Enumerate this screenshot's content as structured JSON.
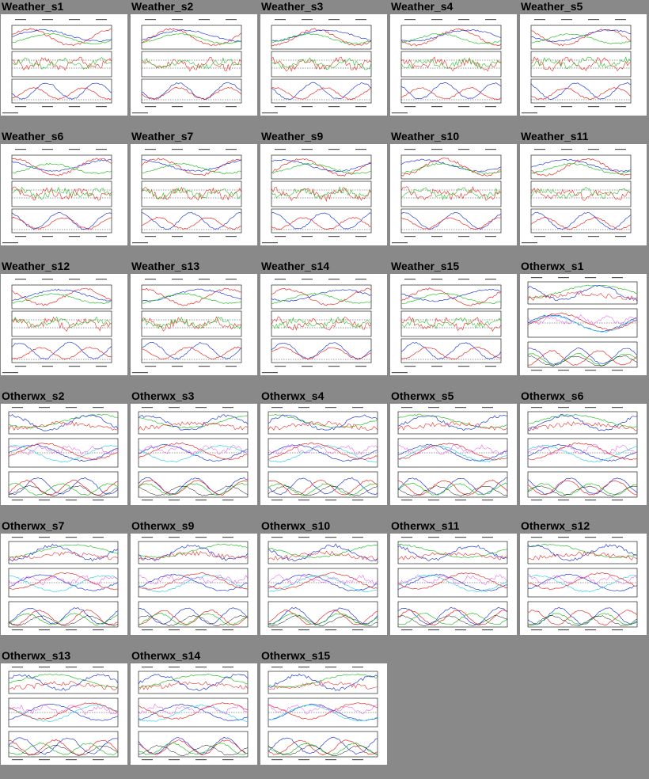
{
  "page": {
    "background": "#898989"
  },
  "thumbnails": [
    {
      "title": "Weather_s1",
      "kind": "weather"
    },
    {
      "title": "Weather_s2",
      "kind": "weather"
    },
    {
      "title": "Weather_s3",
      "kind": "weather"
    },
    {
      "title": "Weather_s4",
      "kind": "weather"
    },
    {
      "title": "Weather_s5",
      "kind": "weather"
    },
    {
      "title": "Weather_s6",
      "kind": "weather"
    },
    {
      "title": "Weather_s7",
      "kind": "weather"
    },
    {
      "title": "Weather_s9",
      "kind": "weather"
    },
    {
      "title": "Weather_s10",
      "kind": "weather"
    },
    {
      "title": "Weather_s11",
      "kind": "weather"
    },
    {
      "title": "Weather_s12",
      "kind": "weather"
    },
    {
      "title": "Weather_s13",
      "kind": "weather"
    },
    {
      "title": "Weather_s14",
      "kind": "weather"
    },
    {
      "title": "Weather_s15",
      "kind": "weather"
    },
    {
      "title": "Otherwx_s1",
      "kind": "otherwx"
    },
    {
      "title": "Otherwx_s2",
      "kind": "otherwx"
    },
    {
      "title": "Otherwx_s3",
      "kind": "otherwx"
    },
    {
      "title": "Otherwx_s4",
      "kind": "otherwx"
    },
    {
      "title": "Otherwx_s5",
      "kind": "otherwx"
    },
    {
      "title": "Otherwx_s6",
      "kind": "otherwx"
    },
    {
      "title": "Otherwx_s7",
      "kind": "otherwx"
    },
    {
      "title": "Otherwx_s9",
      "kind": "otherwx"
    },
    {
      "title": "Otherwx_s10",
      "kind": "otherwx"
    },
    {
      "title": "Otherwx_s11",
      "kind": "otherwx"
    },
    {
      "title": "Otherwx_s12",
      "kind": "otherwx"
    },
    {
      "title": "Otherwx_s13",
      "kind": "otherwx"
    },
    {
      "title": "Otherwx_s14",
      "kind": "otherwx"
    },
    {
      "title": "Otherwx_s15",
      "kind": "otherwx"
    }
  ],
  "trace_colors": {
    "red": "#e8302a",
    "green": "#2fbf2f",
    "blue": "#2a3fd8",
    "cyan": "#3ad0e6",
    "magenta": "#e63ae6",
    "orange": "#f08a2a",
    "black": "#000000"
  }
}
